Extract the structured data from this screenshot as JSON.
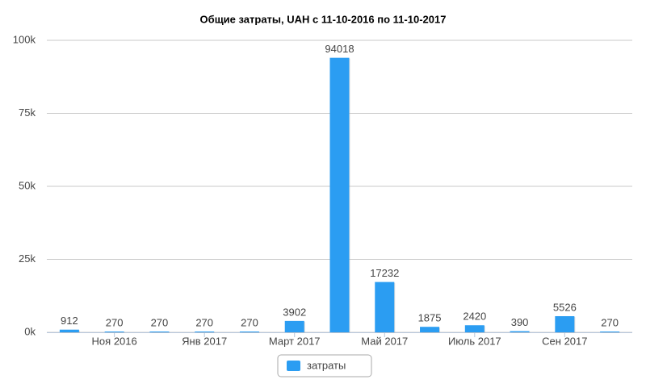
{
  "chart_data": {
    "type": "bar",
    "title": "Общие затраты, UAH с 11-10-2016 по 11-10-2017",
    "categories": [
      null,
      "Ноя 2016",
      null,
      "Янв 2017",
      null,
      "Март 2017",
      null,
      "Май 2017",
      null,
      "Июль 2017",
      null,
      "Сен 2017",
      null
    ],
    "series": [
      {
        "name": "затраты",
        "color": "#2b9df2",
        "values": [
          912,
          270,
          270,
          270,
          270,
          3902,
          94018,
          17232,
          1875,
          2420,
          390,
          5526,
          270
        ]
      }
    ],
    "ylim": [
      0,
      100000
    ],
    "yticks": [
      {
        "value": 0,
        "label": "0k"
      },
      {
        "value": 25000,
        "label": "25k"
      },
      {
        "value": 50000,
        "label": "50k"
      },
      {
        "value": 75000,
        "label": "75k"
      },
      {
        "value": 100000,
        "label": "100k"
      }
    ],
    "grid": true,
    "legend": "bottom"
  }
}
